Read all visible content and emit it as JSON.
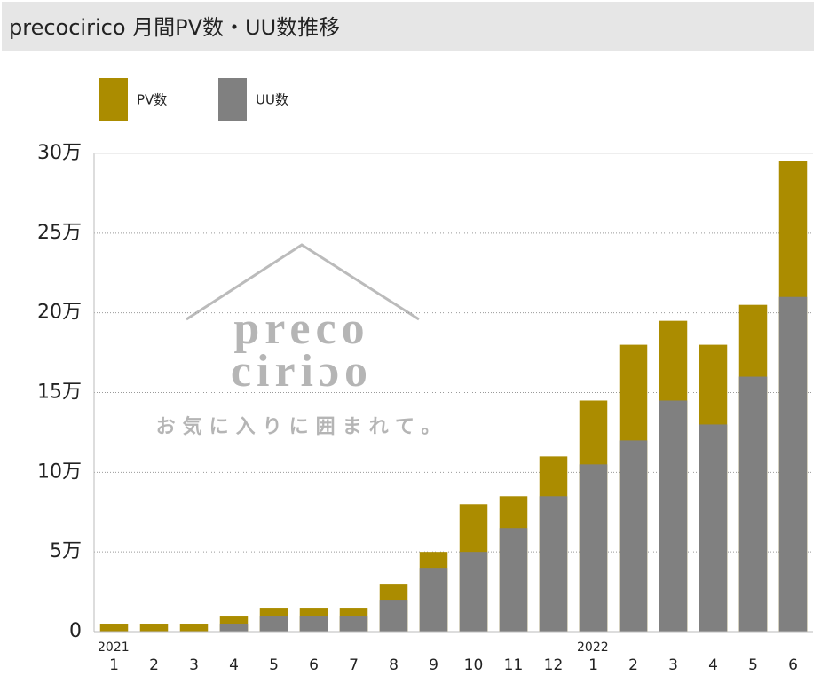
{
  "chart_data": {
    "type": "bar",
    "title": "precocirico 月間PV数・UU数推移",
    "watermark": [
      "preco",
      "ciriɔo",
      "お気に入りに囲まれて。"
    ],
    "groups": [
      {
        "label": "2021",
        "categories": [
          "1",
          "2",
          "3",
          "4",
          "5",
          "6",
          "7",
          "8",
          "9",
          "10",
          "11",
          "12"
        ]
      },
      {
        "label": "2022",
        "categories": [
          "1",
          "2",
          "3",
          "4",
          "5",
          "6"
        ]
      }
    ],
    "series": [
      {
        "name": "PV数",
        "color": "#ab8c00",
        "values": [
          5000,
          5000,
          5000,
          10000,
          15000,
          15000,
          15000,
          30000,
          50000,
          80000,
          85000,
          110000,
          145000,
          180000,
          195000,
          180000,
          205000,
          295000
        ]
      },
      {
        "name": "UU数",
        "color": "#808080",
        "values": [
          0,
          0,
          0,
          5000,
          10000,
          10000,
          10000,
          20000,
          40000,
          50000,
          65000,
          85000,
          105000,
          120000,
          145000,
          130000,
          160000,
          210000
        ]
      }
    ],
    "ylim": [
      0,
      300000
    ],
    "yticks": [
      0,
      {
        "value": 50000,
        "label": "5万"
      },
      {
        "value": 100000,
        "label": "10万"
      },
      {
        "value": 150000,
        "label": "15万"
      },
      {
        "value": 200000,
        "label": "20万"
      },
      {
        "value": 250000,
        "label": "25万"
      },
      {
        "value": 300000,
        "label": "30万"
      }
    ],
    "grid": true,
    "legend": "top-left"
  }
}
